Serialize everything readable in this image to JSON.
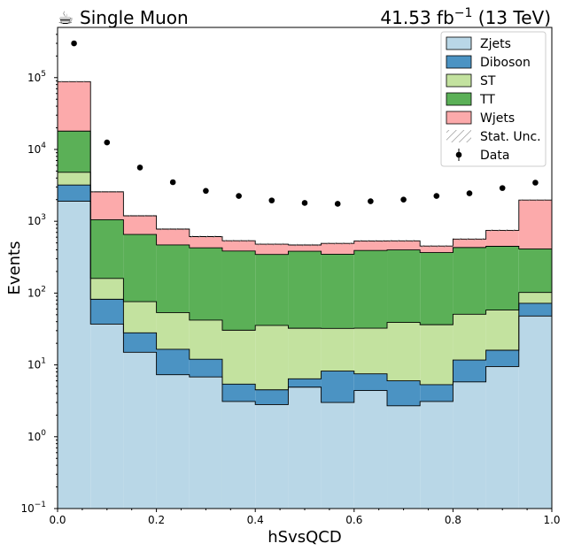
{
  "header": {
    "left_icon": "coffee-cup-icon",
    "left_icon_glyph": "☕",
    "left_label": "Single Muon",
    "lumi_value": "41.53 fb",
    "lumi_exp": "−1",
    "lumi_energy": "(13 TeV)"
  },
  "chart_data": {
    "type": "histogram-stacked",
    "xlabel": "hSvsQCD",
    "ylabel": "Events",
    "xlim": [
      0.0,
      1.0
    ],
    "ylim": [
      0.1,
      500000
    ],
    "yscale": "log",
    "x_ticks": [
      "0.0",
      "0.2",
      "0.4",
      "0.6",
      "0.8",
      "1.0"
    ],
    "y_ticks": [
      {
        "mant": "10",
        "exp": "−1",
        "value": 0.1
      },
      {
        "mant": "10",
        "exp": "0",
        "value": 1
      },
      {
        "mant": "10",
        "exp": "1",
        "value": 10
      },
      {
        "mant": "10",
        "exp": "2",
        "value": 100
      },
      {
        "mant": "10",
        "exp": "3",
        "value": 1000
      },
      {
        "mant": "10",
        "exp": "4",
        "value": 10000
      },
      {
        "mant": "10",
        "exp": "5",
        "value": 100000
      }
    ],
    "bin_edges": [
      0.0,
      0.0667,
      0.1333,
      0.2,
      0.2667,
      0.3333,
      0.4,
      0.4667,
      0.5333,
      0.6,
      0.6667,
      0.7333,
      0.8,
      0.8667,
      0.9333,
      1.0
    ],
    "series": [
      {
        "name": "Zjets",
        "color": "#b9d7e7",
        "values": [
          1900,
          37,
          15,
          7.3,
          6.8,
          3.1,
          2.8,
          4.9,
          3.0,
          4.4,
          2.7,
          3.1,
          5.8,
          9.5,
          48
        ]
      },
      {
        "name": "Diboson",
        "color": "#4b93c3",
        "values": [
          1300,
          45,
          13,
          9.2,
          5.2,
          2.3,
          1.7,
          1.5,
          5.2,
          3.1,
          3.3,
          2.2,
          5.9,
          6.5,
          24
        ]
      },
      {
        "name": "ST",
        "color": "#c3e29f",
        "values": [
          1600,
          78,
          48,
          37,
          30,
          25,
          31,
          26,
          24,
          25,
          33,
          31,
          39,
          42,
          30
        ]
      },
      {
        "name": "TT",
        "color": "#5bb057",
        "values": [
          13200,
          890,
          580,
          415,
          385,
          355,
          310,
          350,
          315,
          360,
          360,
          330,
          380,
          390,
          310
        ]
      },
      {
        "name": "Wjets",
        "color": "#fcaaab",
        "values": [
          70000,
          1520,
          535,
          310,
          185,
          150,
          135,
          85,
          145,
          140,
          135,
          85,
          135,
          300,
          1560
        ]
      }
    ],
    "uncertainty": {
      "name": "Stat. Unc.",
      "pattern": "hatched"
    },
    "data_points": {
      "name": "Data",
      "x": [
        0.0333,
        0.1,
        0.1667,
        0.2333,
        0.3,
        0.3667,
        0.4333,
        0.5,
        0.5667,
        0.6333,
        0.7,
        0.7667,
        0.8333,
        0.9,
        0.9667
      ],
      "y": [
        300000,
        12500,
        5600,
        3500,
        2650,
        2250,
        1950,
        1800,
        1750,
        1900,
        2000,
        2250,
        2450,
        2900,
        3450
      ]
    },
    "legend": {
      "position": "top-right",
      "entries": [
        "Zjets",
        "Diboson",
        "ST",
        "TT",
        "Wjets",
        "Stat. Unc.",
        "Data"
      ]
    }
  }
}
